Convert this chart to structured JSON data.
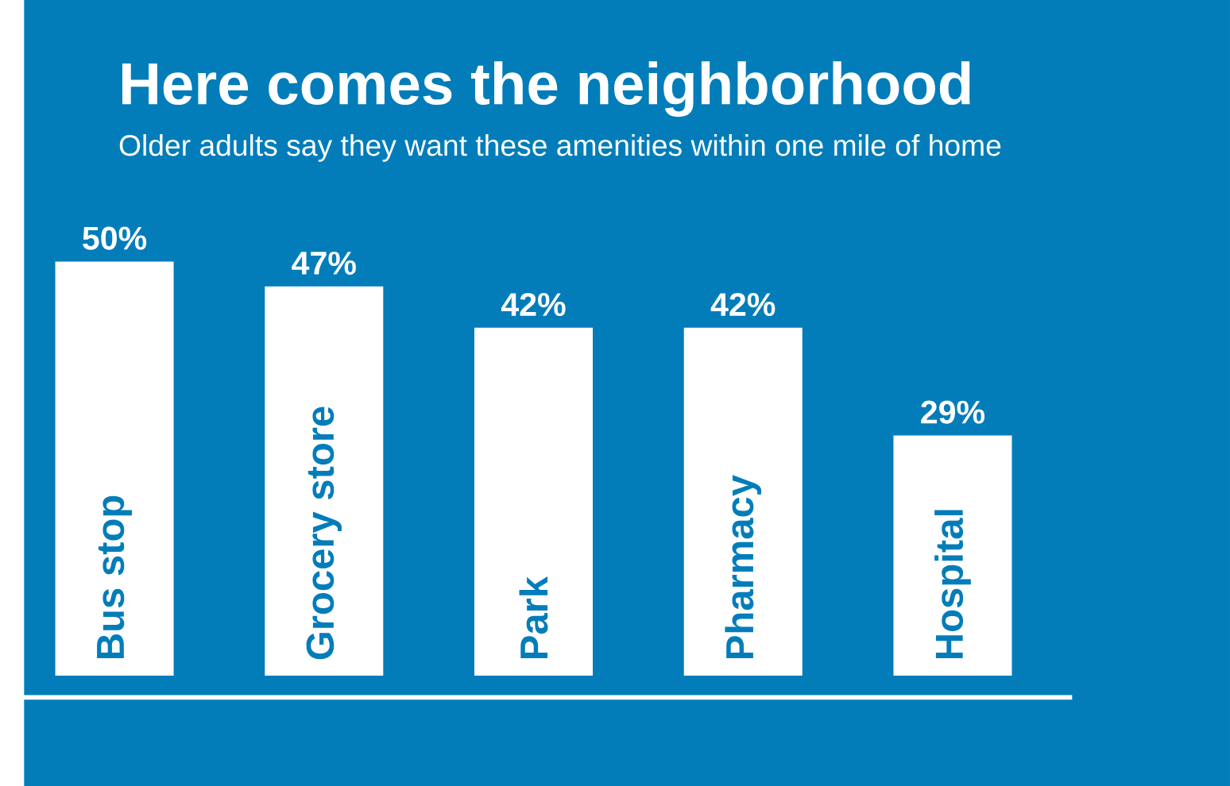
{
  "chart_data": {
    "type": "bar",
    "title": "Here comes the neighborhood",
    "subtitle": "Older adults say they want these amenities within one mile of home",
    "categories": [
      "Bus stop",
      "Grocery store",
      "Park",
      "Pharmacy",
      "Hospital"
    ],
    "values": [
      50,
      47,
      42,
      42,
      29
    ],
    "value_labels": [
      "50%",
      "47%",
      "42%",
      "42%",
      "29%"
    ],
    "color": "#ffffff"
  }
}
